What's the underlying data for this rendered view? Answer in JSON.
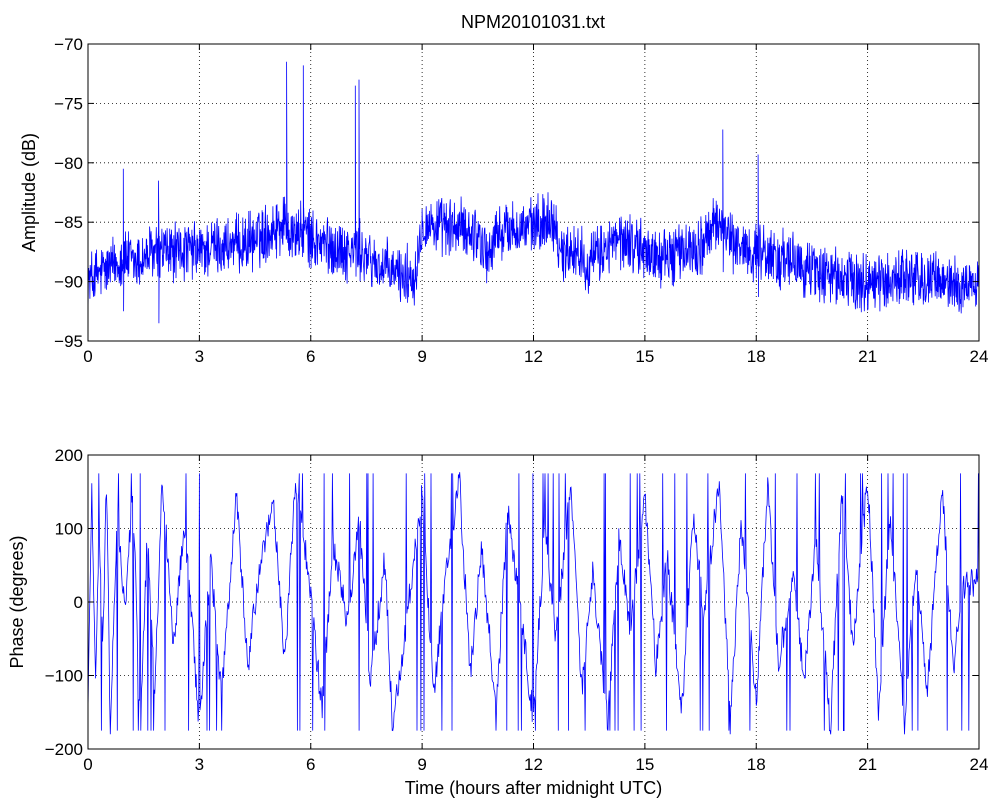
{
  "figure": {
    "title": "NPM20101031.txt"
  },
  "colors": {
    "series": "#0000ff",
    "axes": "#000000",
    "grid": "#000000",
    "background": "#ffffff"
  },
  "chart_data": [
    {
      "type": "line",
      "title": "NPM20101031.txt",
      "xlabel": "",
      "ylabel": "Amplitude (dB)",
      "xlim": [
        0,
        24
      ],
      "ylim": [
        -95,
        -70
      ],
      "xticks": [
        "0",
        "3",
        "6",
        "9",
        "12",
        "15",
        "18",
        "21",
        "24"
      ],
      "yticks": [
        "-95",
        "-90",
        "-85",
        "-80",
        "-75",
        "-70"
      ],
      "grid": true,
      "series": [
        {
          "x": [
            0,
            0.25,
            0.5,
            0.75,
            0.9,
            0.95,
            1.0,
            1.25,
            1.5,
            1.85,
            1.9,
            2.0,
            2.5,
            3.0,
            3.5,
            4.0,
            4.5,
            5.0,
            5.3,
            5.35,
            5.4,
            5.5,
            5.75,
            5.8,
            5.85,
            6.0,
            6.5,
            7.0,
            7.15,
            7.2,
            7.25,
            7.3,
            7.35,
            7.5,
            8.0,
            8.5,
            8.8,
            9.0,
            9.5,
            10.0,
            10.5,
            10.8,
            11.0,
            11.5,
            12.0,
            12.5,
            12.8,
            13.0,
            13.5,
            14.0,
            14.5,
            15.0,
            15.5,
            16.0,
            16.5,
            17.0,
            17.1,
            17.15,
            17.2,
            17.5,
            18.0,
            18.05,
            18.1,
            18.5,
            19.0,
            19.5,
            20.0,
            20.5,
            21.0,
            21.5,
            22.0,
            22.5,
            23.0,
            23.5,
            24.0
          ],
          "y": [
            -90,
            -89.5,
            -89,
            -88.5,
            -88,
            -80.5,
            -88,
            -88.5,
            -88,
            -87.5,
            -81.5,
            -87.5,
            -87.5,
            -87.5,
            -87,
            -87,
            -86.5,
            -85.5,
            -85,
            -71.5,
            -85.5,
            -86,
            -86,
            -71.8,
            -86,
            -86.5,
            -87,
            -87.5,
            -87.5,
            -73.5,
            -87.5,
            -73,
            -87.5,
            -88,
            -89,
            -89.5,
            -89.5,
            -85,
            -85.5,
            -85.5,
            -86,
            -88,
            -86,
            -85.5,
            -85.5,
            -84.5,
            -88,
            -87,
            -88.5,
            -87,
            -86.5,
            -87.5,
            -88,
            -87.5,
            -87,
            -85,
            -77.2,
            -85,
            -86.5,
            -87,
            -87.5,
            -79.3,
            -87.5,
            -88,
            -88.5,
            -89,
            -89.5,
            -90,
            -90,
            -90,
            -89.5,
            -90,
            -90,
            -90.5,
            -90
          ]
        }
      ]
    },
    {
      "type": "line",
      "title": "",
      "xlabel": "Time (hours after midnight UTC)",
      "ylabel": "Phase (degrees)",
      "xlim": [
        0,
        24
      ],
      "ylim": [
        -200,
        200
      ],
      "xticks": [
        "0",
        "3",
        "6",
        "9",
        "12",
        "15",
        "18",
        "21",
        "24"
      ],
      "yticks": [
        "-200",
        "-100",
        "0",
        "100",
        "200"
      ],
      "grid": true,
      "series": [
        {
          "x": [
            0,
            0.1,
            0.2,
            0.3,
            0.4,
            0.5,
            0.6,
            0.8,
            1.0,
            1.2,
            1.4,
            1.6,
            1.8,
            2.0,
            2.3,
            2.6,
            3.0,
            3.3,
            3.6,
            4.0,
            4.3,
            4.6,
            5.0,
            5.3,
            5.6,
            6.0,
            6.3,
            6.6,
            7.0,
            7.3,
            7.6,
            8.0,
            8.2,
            8.5,
            9.0,
            9.3,
            9.6,
            10.0,
            10.3,
            10.6,
            11.0,
            11.3,
            11.6,
            12.0,
            12.3,
            12.6,
            13.0,
            13.3,
            13.6,
            14.0,
            14.3,
            14.6,
            15.0,
            15.3,
            15.6,
            16.0,
            16.3,
            16.6,
            17.0,
            17.3,
            17.6,
            18.0,
            18.3,
            18.6,
            19.0,
            19.3,
            19.6,
            20.0,
            20.3,
            20.6,
            21.0,
            21.3,
            21.6,
            22.0,
            22.3,
            22.6,
            23.0,
            23.3,
            23.6,
            24.0
          ],
          "y": [
            -150,
            160,
            -100,
            80,
            -60,
            170,
            -170,
            120,
            -20,
            160,
            -160,
            90,
            -120,
            170,
            -60,
            110,
            -170,
            60,
            -130,
            150,
            -90,
            40,
            130,
            -80,
            170,
            10,
            -150,
            80,
            -30,
            120,
            -110,
            60,
            -170,
            -60,
            150,
            -130,
            20,
            170,
            -100,
            70,
            -150,
            130,
            10,
            -160,
            100,
            -50,
            160,
            -120,
            40,
            -170,
            90,
            -40,
            150,
            -90,
            60,
            -150,
            120,
            -20,
            170,
            -170,
            110,
            -140,
            160,
            -80,
            30,
            -110,
            90,
            -170,
            150,
            -60,
            170,
            -160,
            120,
            -170,
            60,
            -130,
            160,
            -90,
            20,
            30
          ]
        }
      ]
    }
  ]
}
